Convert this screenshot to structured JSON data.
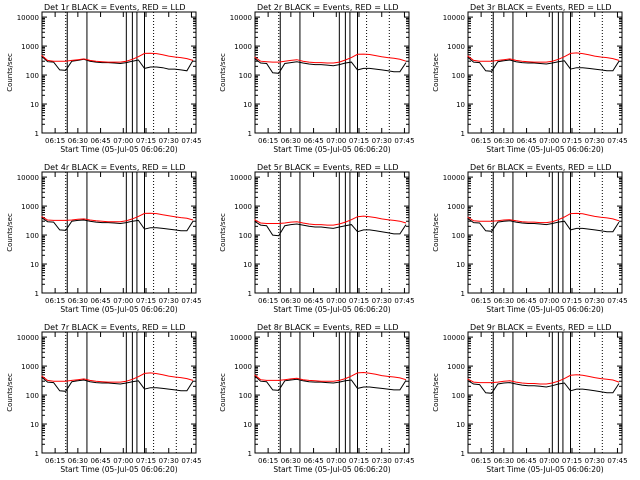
{
  "figure": {
    "ylabel": "Counts/sec",
    "xlabel": "Start Time (05-Jul-05 06:06:20)",
    "x_ticks": [
      "06:15",
      "06:30",
      "06:45",
      "07:00",
      "07:15",
      "07:30",
      "07:45"
    ],
    "y_ticks": [
      "1",
      "10",
      "100",
      "1000",
      "10000"
    ],
    "colors": {
      "events": "#000000",
      "lld": "#ff0000",
      "markers": "#000000"
    }
  },
  "chart_data": [
    {
      "type": "line",
      "title": "Det 1r BLACK = Events, RED = LLD",
      "xlabel": "Start Time (05-Jul-05 06:06:20)",
      "ylabel": "Counts/sec",
      "x": [
        "06:06",
        "06:10",
        "06:14",
        "06:18",
        "06:22",
        "06:26",
        "06:30",
        "06:34",
        "06:38",
        "06:42",
        "06:46",
        "06:50",
        "06:54",
        "06:58",
        "07:02",
        "07:06",
        "07:10",
        "07:14",
        "07:18",
        "07:22",
        "07:26",
        "07:30",
        "07:34",
        "07:38",
        "07:42",
        "07:46"
      ],
      "ylim": [
        1,
        15000
      ],
      "yscale": "log",
      "series": [
        {
          "name": "Events",
          "color": "#000000",
          "values": [
            450,
            290,
            280,
            150,
            145,
            300,
            320,
            350,
            300,
            280,
            270,
            270,
            260,
            250,
            270,
            300,
            330,
            170,
            190,
            190,
            180,
            160,
            160,
            150,
            140,
            320
          ]
        },
        {
          "name": "LLD",
          "color": "#ff0000",
          "values": [
            480,
            320,
            300,
            300,
            300,
            320,
            340,
            360,
            320,
            300,
            290,
            280,
            280,
            280,
            300,
            350,
            430,
            560,
            570,
            550,
            500,
            450,
            420,
            400,
            370,
            320
          ]
        }
      ],
      "vlines_solid": [
        "06:23",
        "06:36",
        "07:02",
        "07:06",
        "07:09",
        "07:14"
      ],
      "vlines_dotted": [
        "06:22",
        "07:20",
        "07:35"
      ]
    },
    {
      "type": "line",
      "title": "Det 2r BLACK = Events, RED = LLD",
      "xlabel": "Start Time (05-Jul-05 06:06:20)",
      "ylabel": "Counts/sec",
      "x": [
        "06:06",
        "06:10",
        "06:14",
        "06:18",
        "06:22",
        "06:26",
        "06:30",
        "06:34",
        "06:38",
        "06:42",
        "06:46",
        "06:50",
        "06:54",
        "06:58",
        "07:02",
        "07:06",
        "07:10",
        "07:14",
        "07:18",
        "07:22",
        "07:26",
        "07:30",
        "07:34",
        "07:38",
        "07:42",
        "07:46"
      ],
      "ylim": [
        1,
        15000
      ],
      "yscale": "log",
      "series": [
        {
          "name": "Events",
          "color": "#000000",
          "values": [
            380,
            260,
            250,
            120,
            115,
            250,
            270,
            290,
            260,
            240,
            230,
            230,
            220,
            210,
            230,
            260,
            280,
            150,
            170,
            170,
            160,
            150,
            140,
            130,
            130,
            270
          ]
        },
        {
          "name": "LLD",
          "color": "#ff0000",
          "values": [
            420,
            300,
            290,
            280,
            280,
            300,
            320,
            340,
            300,
            280,
            270,
            270,
            260,
            260,
            280,
            330,
            400,
            520,
            530,
            510,
            470,
            430,
            400,
            380,
            350,
            300
          ]
        }
      ],
      "vlines_solid": [
        "06:23",
        "06:36",
        "07:02",
        "07:06",
        "07:09",
        "07:14"
      ],
      "vlines_dotted": [
        "06:22",
        "07:20",
        "07:35"
      ]
    },
    {
      "type": "line",
      "title": "Det 3r BLACK = Events, RED = LLD",
      "xlabel": "Start Time (05-Jul-05 06:06:20)",
      "ylabel": "Counts/sec",
      "x": [
        "06:06",
        "06:10",
        "06:14",
        "06:18",
        "06:22",
        "06:26",
        "06:30",
        "06:34",
        "06:38",
        "06:42",
        "06:46",
        "06:50",
        "06:54",
        "06:58",
        "07:02",
        "07:06",
        "07:10",
        "07:14",
        "07:18",
        "07:22",
        "07:26",
        "07:30",
        "07:34",
        "07:38",
        "07:42",
        "07:46"
      ],
      "ylim": [
        1,
        15000
      ],
      "yscale": "log",
      "series": [
        {
          "name": "Events",
          "color": "#000000",
          "values": [
            420,
            280,
            270,
            140,
            135,
            290,
            310,
            330,
            290,
            270,
            260,
            260,
            250,
            240,
            260,
            290,
            310,
            160,
            180,
            180,
            170,
            160,
            150,
            140,
            140,
            300
          ]
        },
        {
          "name": "LLD",
          "color": "#ff0000",
          "values": [
            460,
            320,
            300,
            300,
            300,
            320,
            340,
            360,
            320,
            300,
            290,
            280,
            280,
            280,
            300,
            350,
            430,
            560,
            580,
            550,
            500,
            450,
            420,
            400,
            370,
            320
          ]
        }
      ],
      "vlines_solid": [
        "06:23",
        "06:36",
        "07:02",
        "07:06",
        "07:09",
        "07:14"
      ],
      "vlines_dotted": [
        "06:22",
        "07:20",
        "07:35"
      ]
    },
    {
      "type": "line",
      "title": "Det 4r BLACK = Events, RED = LLD",
      "xlabel": "Start Time (05-Jul-05 06:06:20)",
      "ylabel": "Counts/sec",
      "x": [
        "06:06",
        "06:10",
        "06:14",
        "06:18",
        "06:22",
        "06:26",
        "06:30",
        "06:34",
        "06:38",
        "06:42",
        "06:46",
        "06:50",
        "06:54",
        "06:58",
        "07:02",
        "07:06",
        "07:10",
        "07:14",
        "07:18",
        "07:22",
        "07:26",
        "07:30",
        "07:34",
        "07:38",
        "07:42",
        "07:46"
      ],
      "ylim": [
        1,
        15000
      ],
      "yscale": "log",
      "series": [
        {
          "name": "Events",
          "color": "#000000",
          "values": [
            400,
            290,
            280,
            150,
            145,
            300,
            320,
            330,
            300,
            280,
            270,
            270,
            260,
            250,
            270,
            300,
            320,
            160,
            180,
            180,
            170,
            160,
            150,
            140,
            140,
            300
          ]
        },
        {
          "name": "LLD",
          "color": "#ff0000",
          "values": [
            440,
            330,
            320,
            320,
            320,
            330,
            350,
            360,
            330,
            310,
            300,
            290,
            290,
            290,
            310,
            360,
            440,
            560,
            570,
            550,
            500,
            460,
            430,
            400,
            380,
            330
          ]
        }
      ],
      "vlines_solid": [
        "06:23",
        "06:36",
        "07:02",
        "07:06",
        "07:09",
        "07:14"
      ],
      "vlines_dotted": [
        "06:22",
        "07:20",
        "07:35"
      ]
    },
    {
      "type": "line",
      "title": "Det 5r BLACK = Events, RED = LLD",
      "xlabel": "Start Time (05-Jul-05 06:06:20)",
      "ylabel": "Counts/sec",
      "x": [
        "06:06",
        "06:10",
        "06:14",
        "06:18",
        "06:22",
        "06:26",
        "06:30",
        "06:34",
        "06:38",
        "06:42",
        "06:46",
        "06:50",
        "06:54",
        "06:58",
        "07:02",
        "07:06",
        "07:10",
        "07:14",
        "07:18",
        "07:22",
        "07:26",
        "07:30",
        "07:34",
        "07:38",
        "07:42",
        "07:46"
      ],
      "ylim": [
        1,
        15000
      ],
      "yscale": "log",
      "series": [
        {
          "name": "Events",
          "color": "#000000",
          "values": [
            300,
            220,
            210,
            100,
            95,
            210,
            230,
            240,
            220,
            200,
            190,
            190,
            180,
            170,
            190,
            210,
            230,
            130,
            150,
            150,
            140,
            130,
            120,
            110,
            110,
            230
          ]
        },
        {
          "name": "LLD",
          "color": "#ff0000",
          "values": [
            340,
            260,
            250,
            250,
            250,
            260,
            280,
            290,
            260,
            240,
            230,
            230,
            220,
            220,
            240,
            280,
            340,
            430,
            450,
            430,
            400,
            360,
            340,
            320,
            300,
            260
          ]
        }
      ],
      "vlines_solid": [
        "06:23",
        "06:36",
        "07:02",
        "07:06",
        "07:09",
        "07:14"
      ],
      "vlines_dotted": [
        "06:22",
        "07:20",
        "07:35"
      ]
    },
    {
      "type": "line",
      "title": "Det 6r BLACK = Events, RED = LLD",
      "xlabel": "Start Time (05-Jul-05 06:06:20)",
      "ylabel": "Counts/sec",
      "x": [
        "06:06",
        "06:10",
        "06:14",
        "06:18",
        "06:22",
        "06:26",
        "06:30",
        "06:34",
        "06:38",
        "06:42",
        "06:46",
        "06:50",
        "06:54",
        "06:58",
        "07:02",
        "07:06",
        "07:10",
        "07:14",
        "07:18",
        "07:22",
        "07:26",
        "07:30",
        "07:34",
        "07:38",
        "07:42",
        "07:46"
      ],
      "ylim": [
        1,
        15000
      ],
      "yscale": "log",
      "series": [
        {
          "name": "Events",
          "color": "#000000",
          "values": [
            380,
            270,
            260,
            140,
            135,
            280,
            300,
            310,
            280,
            260,
            250,
            250,
            240,
            230,
            250,
            280,
            300,
            150,
            170,
            170,
            160,
            150,
            140,
            130,
            130,
            280
          ]
        },
        {
          "name": "LLD",
          "color": "#ff0000",
          "values": [
            420,
            310,
            300,
            300,
            300,
            310,
            330,
            340,
            310,
            290,
            280,
            280,
            270,
            270,
            290,
            340,
            420,
            550,
            560,
            540,
            490,
            440,
            410,
            390,
            360,
            310
          ]
        }
      ],
      "vlines_solid": [
        "06:23",
        "06:36",
        "07:02",
        "07:06",
        "07:09",
        "07:14"
      ],
      "vlines_dotted": [
        "06:22",
        "07:20",
        "07:35"
      ]
    },
    {
      "type": "line",
      "title": "Det 7r BLACK = Events, RED = LLD",
      "xlabel": "Start Time (05-Jul-05 06:06:20)",
      "ylabel": "Counts/sec",
      "x": [
        "06:06",
        "06:10",
        "06:14",
        "06:18",
        "06:22",
        "06:26",
        "06:30",
        "06:34",
        "06:38",
        "06:42",
        "06:46",
        "06:50",
        "06:54",
        "06:58",
        "07:02",
        "07:06",
        "07:10",
        "07:14",
        "07:18",
        "07:22",
        "07:26",
        "07:30",
        "07:34",
        "07:38",
        "07:42",
        "07:46"
      ],
      "ylim": [
        1,
        15000
      ],
      "yscale": "log",
      "series": [
        {
          "name": "Events",
          "color": "#000000",
          "values": [
            420,
            280,
            270,
            140,
            135,
            290,
            310,
            330,
            290,
            270,
            260,
            260,
            250,
            240,
            260,
            290,
            310,
            160,
            180,
            180,
            170,
            160,
            150,
            140,
            140,
            300
          ]
        },
        {
          "name": "LLD",
          "color": "#ff0000",
          "values": [
            460,
            320,
            300,
            300,
            300,
            320,
            340,
            360,
            320,
            300,
            290,
            280,
            280,
            280,
            300,
            350,
            430,
            560,
            580,
            550,
            500,
            450,
            420,
            400,
            370,
            320
          ]
        }
      ],
      "vlines_solid": [
        "06:23",
        "06:36",
        "07:02",
        "07:06",
        "07:09",
        "07:14"
      ],
      "vlines_dotted": [
        "06:22",
        "07:20",
        "07:35"
      ]
    },
    {
      "type": "line",
      "title": "Det 8r BLACK = Events, RED = LLD",
      "xlabel": "Start Time (05-Jul-05 06:06:20)",
      "ylabel": "Counts/sec",
      "x": [
        "06:06",
        "06:10",
        "06:14",
        "06:18",
        "06:22",
        "06:26",
        "06:30",
        "06:34",
        "06:38",
        "06:42",
        "06:46",
        "06:50",
        "06:54",
        "06:58",
        "07:02",
        "07:06",
        "07:10",
        "07:14",
        "07:18",
        "07:22",
        "07:26",
        "07:30",
        "07:34",
        "07:38",
        "07:42",
        "07:46"
      ],
      "ylim": [
        1,
        15000
      ],
      "yscale": "log",
      "series": [
        {
          "name": "Events",
          "color": "#000000",
          "values": [
            460,
            300,
            290,
            150,
            145,
            310,
            330,
            350,
            310,
            290,
            280,
            280,
            270,
            260,
            280,
            310,
            330,
            170,
            190,
            190,
            180,
            170,
            160,
            150,
            150,
            320
          ]
        },
        {
          "name": "LLD",
          "color": "#ff0000",
          "values": [
            500,
            340,
            320,
            320,
            320,
            340,
            360,
            380,
            340,
            320,
            310,
            300,
            300,
            300,
            320,
            370,
            450,
            580,
            600,
            570,
            520,
            470,
            440,
            420,
            390,
            340
          ]
        }
      ],
      "vlines_solid": [
        "06:23",
        "06:36",
        "07:02",
        "07:06",
        "07:09",
        "07:14"
      ],
      "vlines_dotted": [
        "06:22",
        "07:20",
        "07:35"
      ]
    },
    {
      "type": "line",
      "title": "Det 9r BLACK = Events, RED = LLD",
      "xlabel": "Start Time (05-Jul-05 06:06:20)",
      "ylabel": "Counts/sec",
      "x": [
        "06:06",
        "06:10",
        "06:14",
        "06:18",
        "06:22",
        "06:26",
        "06:30",
        "06:34",
        "06:38",
        "06:42",
        "06:46",
        "06:50",
        "06:54",
        "06:58",
        "07:02",
        "07:06",
        "07:10",
        "07:14",
        "07:18",
        "07:22",
        "07:26",
        "07:30",
        "07:34",
        "07:38",
        "07:42",
        "07:46"
      ],
      "ylim": [
        1,
        15000
      ],
      "yscale": "log",
      "series": [
        {
          "name": "Events",
          "color": "#000000",
          "values": [
            320,
            240,
            230,
            120,
            115,
            240,
            260,
            270,
            240,
            220,
            210,
            210,
            200,
            190,
            210,
            240,
            260,
            140,
            160,
            160,
            150,
            140,
            130,
            120,
            120,
            250
          ]
        },
        {
          "name": "LLD",
          "color": "#ff0000",
          "values": [
            360,
            280,
            270,
            270,
            270,
            280,
            300,
            310,
            280,
            260,
            250,
            250,
            240,
            240,
            260,
            300,
            370,
            480,
            500,
            480,
            440,
            400,
            370,
            350,
            330,
            280
          ]
        }
      ],
      "vlines_solid": [
        "06:23",
        "06:36",
        "07:02",
        "07:06",
        "07:09",
        "07:14"
      ],
      "vlines_dotted": [
        "06:22",
        "07:20",
        "07:35"
      ]
    }
  ]
}
